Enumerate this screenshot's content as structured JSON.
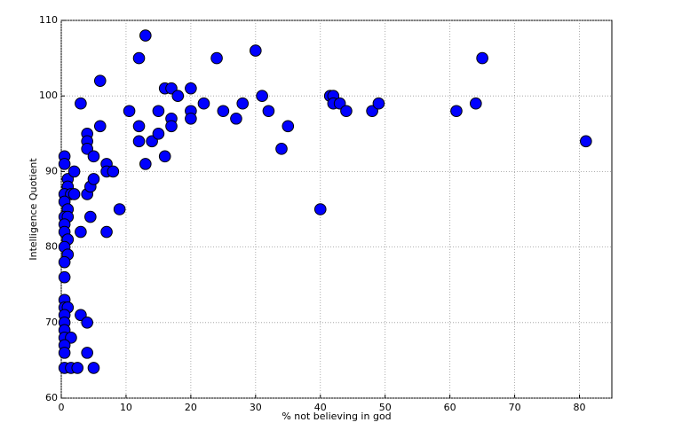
{
  "chart_data": {
    "type": "scatter",
    "x_label": "% not believing in god",
    "y_label": "Intelligence Quotient",
    "xlim": [
      0,
      85
    ],
    "ylim": [
      60,
      110
    ],
    "xticks": [
      0,
      10,
      20,
      30,
      40,
      50,
      60,
      70,
      80
    ],
    "yticks": [
      60,
      70,
      80,
      90,
      100,
      110
    ],
    "grid": true,
    "color": "#0000ff",
    "x": [
      0.5,
      0.5,
      1,
      1,
      0.5,
      1.5,
      0.5,
      1,
      0.5,
      1,
      0.5,
      0.5,
      1,
      0.5,
      1,
      0.5,
      0.5,
      0.5,
      0.5,
      1,
      0.5,
      0.5,
      0.5,
      0.5,
      1.5,
      0.5,
      0.5,
      0.5,
      1.5,
      2.5,
      5,
      3,
      4,
      4,
      2,
      2,
      3,
      3,
      4,
      4,
      4,
      4,
      4.5,
      5,
      4.5,
      5,
      6,
      6,
      7,
      7,
      8,
      7,
      9,
      10.5,
      12,
      12,
      12,
      13,
      13,
      14,
      15,
      15,
      16,
      16,
      17,
      17,
      17,
      18,
      20,
      20,
      20,
      22,
      24,
      25,
      27,
      28,
      30,
      31,
      32,
      34,
      35,
      40,
      41.5,
      42,
      42,
      43,
      44,
      48,
      49,
      61,
      64,
      65,
      81
    ],
    "values": [
      92,
      91,
      89,
      88,
      87,
      87,
      86,
      85,
      84,
      84,
      83,
      82,
      81,
      80,
      79,
      78,
      76,
      73,
      72,
      72,
      71,
      70,
      69,
      68,
      68,
      67,
      66,
      64,
      64,
      64,
      64,
      71,
      70,
      66,
      87,
      90,
      82,
      99,
      95,
      94,
      93,
      87,
      88,
      89,
      84,
      92,
      96,
      102,
      91,
      90,
      90,
      82,
      85,
      98,
      105,
      96,
      94,
      108,
      91,
      94,
      98,
      95,
      101,
      92,
      101,
      97,
      96,
      100,
      101,
      98,
      97,
      99,
      105,
      98,
      97,
      99,
      106,
      100,
      98,
      93,
      96,
      85,
      100,
      100,
      99,
      99,
      98,
      98,
      99,
      98,
      99,
      105,
      94
    ]
  }
}
